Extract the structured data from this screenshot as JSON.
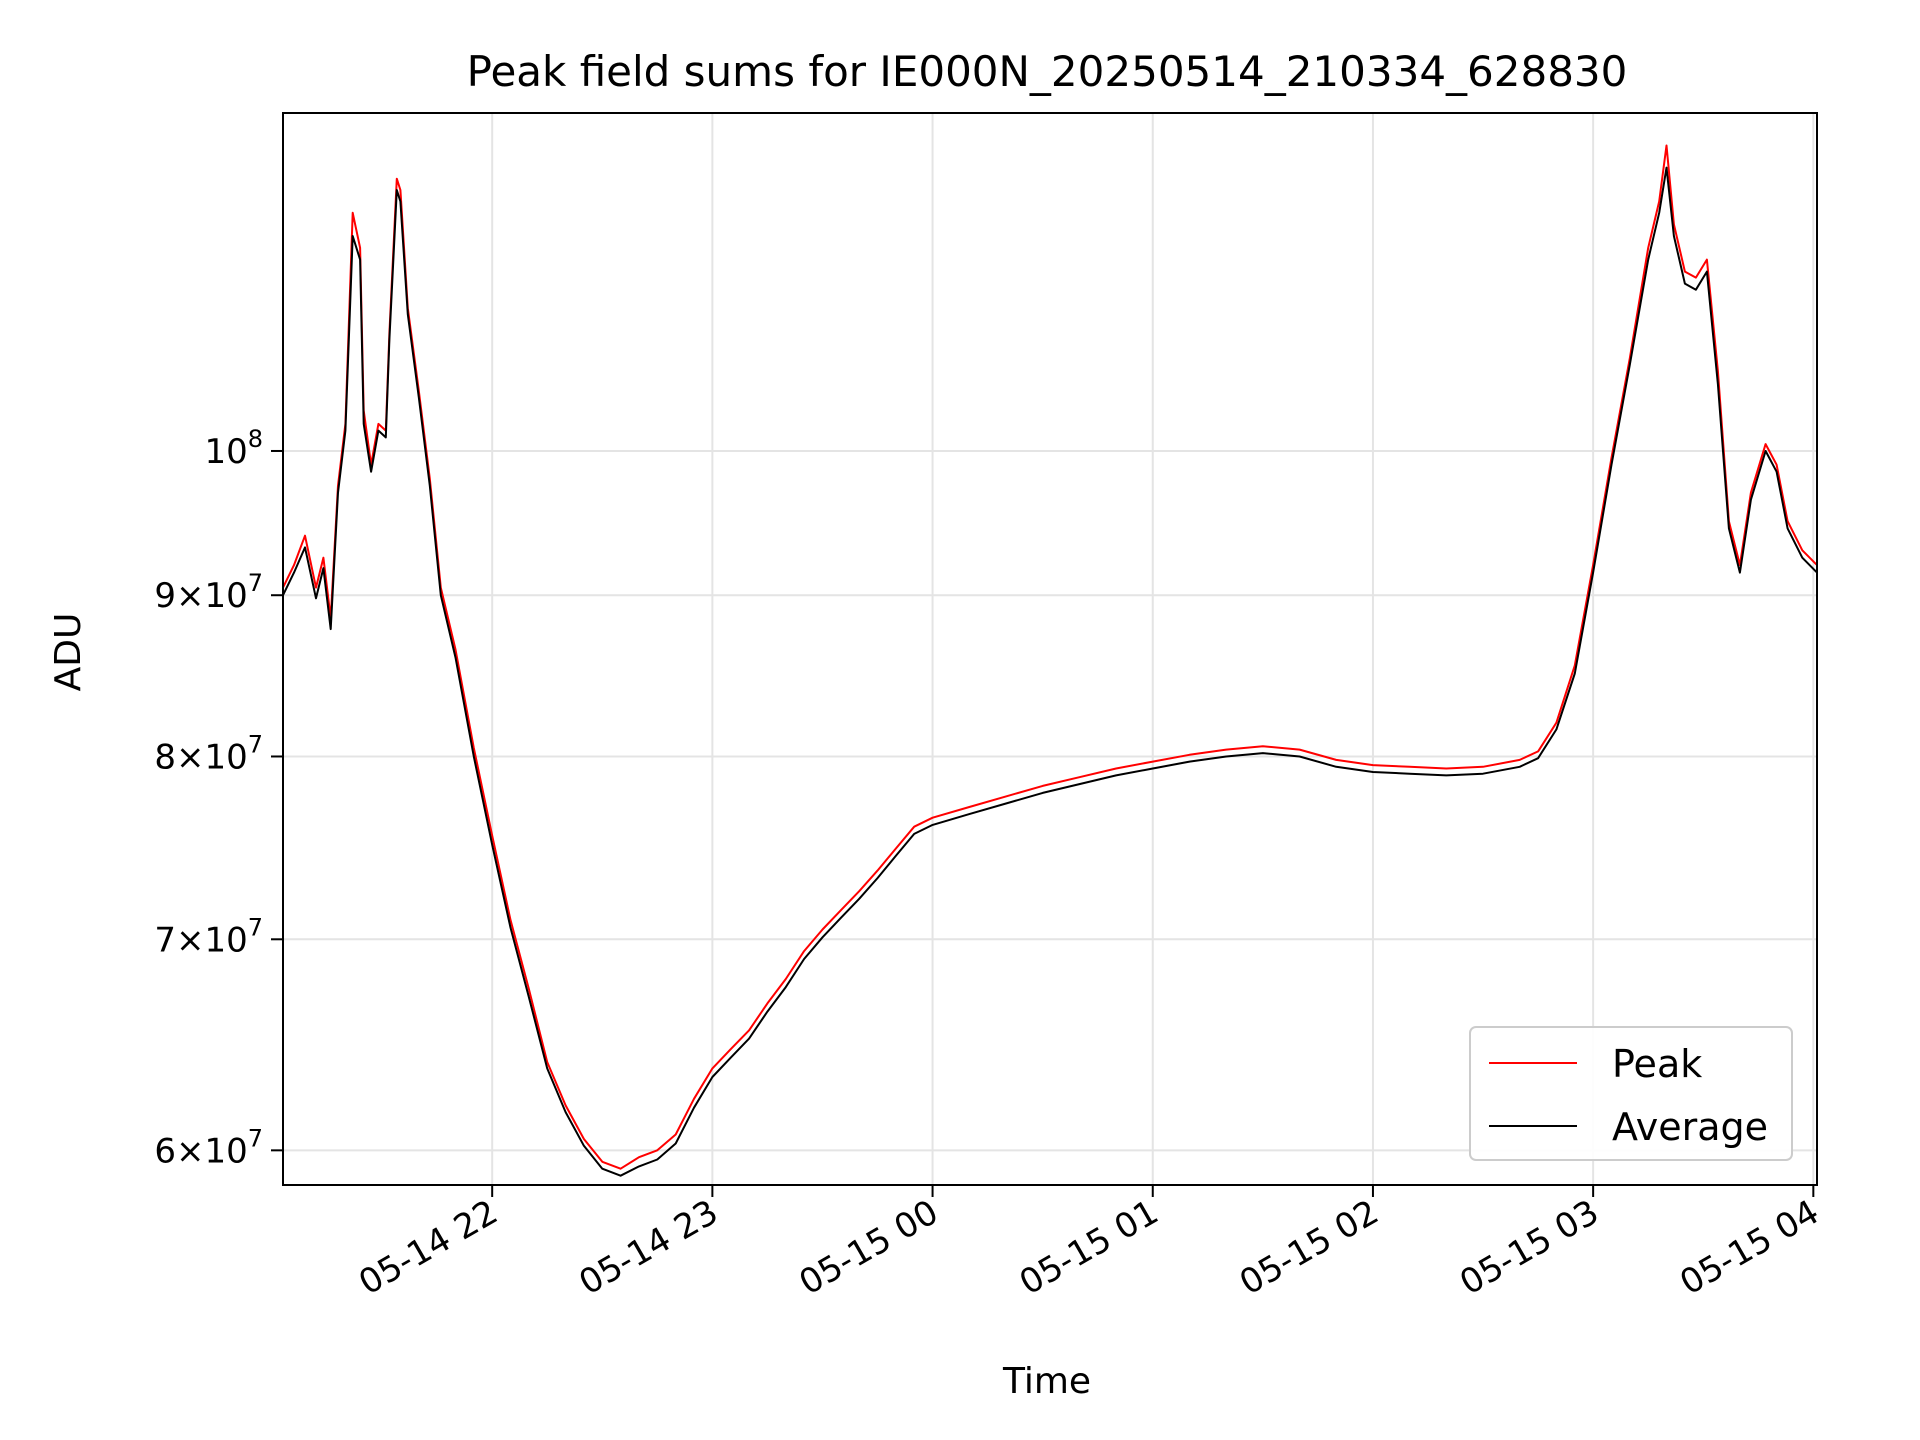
{
  "chart_data": {
    "type": "line",
    "title": "Peak field sums for IE000N_20250514_210334_628830",
    "xlabel": "Time",
    "ylabel": "ADU",
    "x_scale": "time",
    "y_scale": "log",
    "xlim": [
      "2025-05-14 21:03",
      "2025-05-15 04:01"
    ],
    "ylim": [
      58500000,
      128000000
    ],
    "grid": true,
    "legend_position": "lower right",
    "x_ticks": [
      {
        "value": "2025-05-14 22:00",
        "label": "05-14 22"
      },
      {
        "value": "2025-05-14 23:00",
        "label": "05-14 23"
      },
      {
        "value": "2025-05-15 00:00",
        "label": "05-15 00"
      },
      {
        "value": "2025-05-15 01:00",
        "label": "05-15 01"
      },
      {
        "value": "2025-05-15 02:00",
        "label": "05-15 02"
      },
      {
        "value": "2025-05-15 03:00",
        "label": "05-15 03"
      },
      {
        "value": "2025-05-15 04:00",
        "label": "05-15 04"
      }
    ],
    "y_ticks": [
      {
        "value": 60000000,
        "mant": "6",
        "exp": "7"
      },
      {
        "value": 70000000,
        "mant": "7",
        "exp": "7"
      },
      {
        "value": 80000000,
        "mant": "8",
        "exp": "7"
      },
      {
        "value": 90000000,
        "mant": "9",
        "exp": "7"
      },
      {
        "value": 100000000,
        "mant": "",
        "exp": "8"
      }
    ],
    "y_tick_base": "10",
    "y_tick_times": "×",
    "series": [
      {
        "name": "Peak",
        "color": "#ff0000",
        "points": [
          [
            "2025-05-14 21:03",
            90500000
          ],
          [
            "2025-05-14 21:06",
            92000000
          ],
          [
            "2025-05-14 21:09",
            94000000
          ],
          [
            "2025-05-14 21:12",
            90500000
          ],
          [
            "2025-05-14 21:14",
            92500000
          ],
          [
            "2025-05-14 21:16",
            88500000
          ],
          [
            "2025-05-14 21:18",
            97500000
          ],
          [
            "2025-05-14 21:20",
            102000000
          ],
          [
            "2025-05-14 21:22",
            119000000
          ],
          [
            "2025-05-14 21:24",
            116000000
          ],
          [
            "2025-05-14 21:25",
            103000000
          ],
          [
            "2025-05-14 21:27",
            99000000
          ],
          [
            "2025-05-14 21:29",
            102000000
          ],
          [
            "2025-05-14 21:31",
            101500000
          ],
          [
            "2025-05-14 21:32",
            109000000
          ],
          [
            "2025-05-14 21:34",
            122000000
          ],
          [
            "2025-05-14 21:35",
            121000000
          ],
          [
            "2025-05-14 21:37",
            111000000
          ],
          [
            "2025-05-14 21:40",
            104500000
          ],
          [
            "2025-05-14 21:43",
            98000000
          ],
          [
            "2025-05-14 21:46",
            90500000
          ],
          [
            "2025-05-14 21:50",
            86500000
          ],
          [
            "2025-05-14 21:55",
            80500000
          ],
          [
            "2025-05-14 22:00",
            75500000
          ],
          [
            "2025-05-14 22:05",
            71000000
          ],
          [
            "2025-05-14 22:10",
            67500000
          ],
          [
            "2025-05-14 22:15",
            64000000
          ],
          [
            "2025-05-14 22:20",
            62000000
          ],
          [
            "2025-05-14 22:25",
            60500000
          ],
          [
            "2025-05-14 22:30",
            59500000
          ],
          [
            "2025-05-14 22:35",
            59200000
          ],
          [
            "2025-05-14 22:40",
            59700000
          ],
          [
            "2025-05-14 22:45",
            60000000
          ],
          [
            "2025-05-14 22:50",
            60700000
          ],
          [
            "2025-05-14 22:55",
            62300000
          ],
          [
            "2025-05-14 23:00",
            63700000
          ],
          [
            "2025-05-14 23:05",
            64600000
          ],
          [
            "2025-05-14 23:10",
            65500000
          ],
          [
            "2025-05-14 23:15",
            66800000
          ],
          [
            "2025-05-14 23:20",
            68000000
          ],
          [
            "2025-05-14 23:25",
            69400000
          ],
          [
            "2025-05-14 23:30",
            70500000
          ],
          [
            "2025-05-14 23:35",
            71500000
          ],
          [
            "2025-05-14 23:40",
            72500000
          ],
          [
            "2025-05-14 23:45",
            73600000
          ],
          [
            "2025-05-14 23:50",
            74800000
          ],
          [
            "2025-05-14 23:55",
            76000000
          ],
          [
            "2025-05-15 00:00",
            76500000
          ],
          [
            "2025-05-15 00:10",
            77100000
          ],
          [
            "2025-05-15 00:20",
            77700000
          ],
          [
            "2025-05-15 00:30",
            78300000
          ],
          [
            "2025-05-15 00:40",
            78800000
          ],
          [
            "2025-05-15 00:50",
            79300000
          ],
          [
            "2025-05-15 01:00",
            79700000
          ],
          [
            "2025-05-15 01:10",
            80100000
          ],
          [
            "2025-05-15 01:20",
            80400000
          ],
          [
            "2025-05-15 01:30",
            80600000
          ],
          [
            "2025-05-15 01:40",
            80400000
          ],
          [
            "2025-05-15 01:50",
            79800000
          ],
          [
            "2025-05-15 02:00",
            79500000
          ],
          [
            "2025-05-15 02:10",
            79400000
          ],
          [
            "2025-05-15 02:20",
            79300000
          ],
          [
            "2025-05-15 02:30",
            79400000
          ],
          [
            "2025-05-15 02:40",
            79800000
          ],
          [
            "2025-05-15 02:45",
            80300000
          ],
          [
            "2025-05-15 02:50",
            82000000
          ],
          [
            "2025-05-15 02:55",
            85500000
          ],
          [
            "2025-05-15 03:00",
            92000000
          ],
          [
            "2025-05-15 03:05",
            99500000
          ],
          [
            "2025-05-15 03:10",
            107000000
          ],
          [
            "2025-05-15 03:15",
            116000000
          ],
          [
            "2025-05-15 03:18",
            120000000
          ],
          [
            "2025-05-15 03:20",
            125000000
          ],
          [
            "2025-05-15 03:22",
            118000000
          ],
          [
            "2025-05-15 03:25",
            114000000
          ],
          [
            "2025-05-15 03:28",
            113500000
          ],
          [
            "2025-05-15 03:31",
            115000000
          ],
          [
            "2025-05-15 03:34",
            106000000
          ],
          [
            "2025-05-15 03:37",
            95000000
          ],
          [
            "2025-05-15 03:40",
            92000000
          ],
          [
            "2025-05-15 03:43",
            97000000
          ],
          [
            "2025-05-15 03:47",
            100500000
          ],
          [
            "2025-05-15 03:50",
            99000000
          ],
          [
            "2025-05-15 03:53",
            95000000
          ],
          [
            "2025-05-15 03:57",
            93000000
          ],
          [
            "2025-05-15 04:01",
            92000000
          ]
        ]
      },
      {
        "name": "Average",
        "color": "#000000",
        "points": [
          [
            "2025-05-14 21:03",
            90000000
          ],
          [
            "2025-05-14 21:06",
            91500000
          ],
          [
            "2025-05-14 21:09",
            93200000
          ],
          [
            "2025-05-14 21:12",
            89800000
          ],
          [
            "2025-05-14 21:14",
            91800000
          ],
          [
            "2025-05-14 21:16",
            87800000
          ],
          [
            "2025-05-14 21:18",
            97000000
          ],
          [
            "2025-05-14 21:20",
            101500000
          ],
          [
            "2025-05-14 21:22",
            117000000
          ],
          [
            "2025-05-14 21:24",
            115000000
          ],
          [
            "2025-05-14 21:25",
            102000000
          ],
          [
            "2025-05-14 21:27",
            98500000
          ],
          [
            "2025-05-14 21:29",
            101500000
          ],
          [
            "2025-05-14 21:31",
            101000000
          ],
          [
            "2025-05-14 21:32",
            108500000
          ],
          [
            "2025-05-14 21:34",
            121000000
          ],
          [
            "2025-05-14 21:35",
            120000000
          ],
          [
            "2025-05-14 21:37",
            110500000
          ],
          [
            "2025-05-14 21:40",
            104000000
          ],
          [
            "2025-05-14 21:43",
            97500000
          ],
          [
            "2025-05-14 21:46",
            90000000
          ],
          [
            "2025-05-14 21:50",
            86000000
          ],
          [
            "2025-05-14 21:55",
            80000000
          ],
          [
            "2025-05-14 22:00",
            75000000
          ],
          [
            "2025-05-14 22:05",
            70600000
          ],
          [
            "2025-05-14 22:10",
            67100000
          ],
          [
            "2025-05-14 22:15",
            63700000
          ],
          [
            "2025-05-14 22:20",
            61700000
          ],
          [
            "2025-05-14 22:25",
            60200000
          ],
          [
            "2025-05-14 22:30",
            59200000
          ],
          [
            "2025-05-14 22:35",
            58900000
          ],
          [
            "2025-05-14 22:40",
            59300000
          ],
          [
            "2025-05-14 22:45",
            59600000
          ],
          [
            "2025-05-14 22:50",
            60300000
          ],
          [
            "2025-05-14 22:55",
            61900000
          ],
          [
            "2025-05-14 23:00",
            63300000
          ],
          [
            "2025-05-14 23:05",
            64200000
          ],
          [
            "2025-05-14 23:10",
            65100000
          ],
          [
            "2025-05-14 23:15",
            66400000
          ],
          [
            "2025-05-14 23:20",
            67600000
          ],
          [
            "2025-05-14 23:25",
            69000000
          ],
          [
            "2025-05-14 23:30",
            70100000
          ],
          [
            "2025-05-14 23:35",
            71100000
          ],
          [
            "2025-05-14 23:40",
            72100000
          ],
          [
            "2025-05-14 23:45",
            73200000
          ],
          [
            "2025-05-14 23:50",
            74400000
          ],
          [
            "2025-05-14 23:55",
            75600000
          ],
          [
            "2025-05-15 00:00",
            76100000
          ],
          [
            "2025-05-15 00:10",
            76700000
          ],
          [
            "2025-05-15 00:20",
            77300000
          ],
          [
            "2025-05-15 00:30",
            77900000
          ],
          [
            "2025-05-15 00:40",
            78400000
          ],
          [
            "2025-05-15 00:50",
            78900000
          ],
          [
            "2025-05-15 01:00",
            79300000
          ],
          [
            "2025-05-15 01:10",
            79700000
          ],
          [
            "2025-05-15 01:20",
            80000000
          ],
          [
            "2025-05-15 01:30",
            80200000
          ],
          [
            "2025-05-15 01:40",
            80000000
          ],
          [
            "2025-05-15 01:50",
            79400000
          ],
          [
            "2025-05-15 02:00",
            79100000
          ],
          [
            "2025-05-15 02:10",
            79000000
          ],
          [
            "2025-05-15 02:20",
            78900000
          ],
          [
            "2025-05-15 02:30",
            79000000
          ],
          [
            "2025-05-15 02:40",
            79400000
          ],
          [
            "2025-05-15 02:45",
            79900000
          ],
          [
            "2025-05-15 02:50",
            81600000
          ],
          [
            "2025-05-15 02:55",
            85000000
          ],
          [
            "2025-05-15 03:00",
            91500000
          ],
          [
            "2025-05-15 03:05",
            99000000
          ],
          [
            "2025-05-15 03:10",
            106500000
          ],
          [
            "2025-05-15 03:15",
            115000000
          ],
          [
            "2025-05-15 03:18",
            119000000
          ],
          [
            "2025-05-15 03:20",
            123000000
          ],
          [
            "2025-05-15 03:22",
            117000000
          ],
          [
            "2025-05-15 03:25",
            113000000
          ],
          [
            "2025-05-15 03:28",
            112500000
          ],
          [
            "2025-05-15 03:31",
            114000000
          ],
          [
            "2025-05-15 03:34",
            105000000
          ],
          [
            "2025-05-15 03:37",
            94500000
          ],
          [
            "2025-05-15 03:40",
            91500000
          ],
          [
            "2025-05-15 03:43",
            96500000
          ],
          [
            "2025-05-15 03:47",
            100000000
          ],
          [
            "2025-05-15 03:50",
            98500000
          ],
          [
            "2025-05-15 03:53",
            94500000
          ],
          [
            "2025-05-15 03:57",
            92500000
          ],
          [
            "2025-05-15 04:01",
            91500000
          ]
        ]
      }
    ]
  }
}
